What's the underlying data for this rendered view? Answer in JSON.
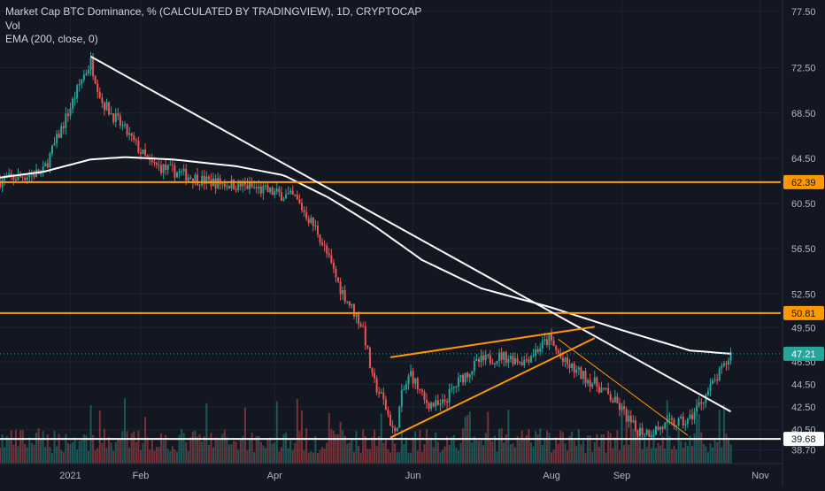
{
  "legend": {
    "title": "Market Cap BTC Dominance, % (CALCULATED BY TRADINGVIEW), 1D, CRYPTOCAP",
    "vol": "Vol",
    "ema": "EMA (200, close, 0)"
  },
  "colors": {
    "background": "#131722",
    "grid": "#1f2330",
    "up": "#26a69a",
    "down": "#ef5350",
    "level": "#ff9800",
    "line": "#ffffff",
    "text": "#b2b5be"
  },
  "chart_data": {
    "type": "candlestick",
    "title": "Market Cap BTC Dominance, % (CALCULATED BY TRADINGVIEW), 1D, CRYPTOCAP",
    "y_ticks": [
      "77.50",
      "72.50",
      "68.50",
      "64.50",
      "60.50",
      "56.50",
      "52.50",
      "49.50",
      "46.50",
      "44.50",
      "42.50",
      "40.50",
      "38.70"
    ],
    "x_ticks": [
      "2021",
      "Feb",
      "Apr",
      "Jun",
      "Aug",
      "Sep",
      "Nov"
    ],
    "ylim": [
      37.5,
      78.5
    ],
    "x_range": [
      "2020-12-01",
      "2021-11-10"
    ],
    "price_path": [
      {
        "date": "2020-12-01",
        "value": 62.5
      },
      {
        "date": "2020-12-20",
        "value": 63.3
      },
      {
        "date": "2021-01-01",
        "value": 69.0
      },
      {
        "date": "2021-01-06",
        "value": 71.5
      },
      {
        "date": "2021-01-10",
        "value": 73.0
      },
      {
        "date": "2021-01-15",
        "value": 69.5
      },
      {
        "date": "2021-01-25",
        "value": 67.0
      },
      {
        "date": "2021-02-05",
        "value": 64.0
      },
      {
        "date": "2021-03-01",
        "value": 62.5
      },
      {
        "date": "2021-03-20",
        "value": 62.0
      },
      {
        "date": "2021-04-10",
        "value": 61.0
      },
      {
        "date": "2021-04-20",
        "value": 58.0
      },
      {
        "date": "2021-04-30",
        "value": 53.0
      },
      {
        "date": "2021-05-10",
        "value": 49.5
      },
      {
        "date": "2021-05-14",
        "value": 45.0
      },
      {
        "date": "2021-05-19",
        "value": 43.0
      },
      {
        "date": "2021-05-24",
        "value": 40.0
      },
      {
        "date": "2021-05-27",
        "value": 43.5
      },
      {
        "date": "2021-05-31",
        "value": 45.5
      },
      {
        "date": "2021-06-06",
        "value": 43.0
      },
      {
        "date": "2021-06-13",
        "value": 42.5
      },
      {
        "date": "2021-06-22",
        "value": 45.0
      },
      {
        "date": "2021-06-30",
        "value": 46.5
      },
      {
        "date": "2021-07-10",
        "value": 47.0
      },
      {
        "date": "2021-07-20",
        "value": 46.6
      },
      {
        "date": "2021-07-31",
        "value": 48.5
      },
      {
        "date": "2021-08-06",
        "value": 46.5
      },
      {
        "date": "2021-08-13",
        "value": 45.5
      },
      {
        "date": "2021-08-22",
        "value": 44.3
      },
      {
        "date": "2021-08-31",
        "value": 42.5
      },
      {
        "date": "2021-09-07",
        "value": 40.5
      },
      {
        "date": "2021-09-13",
        "value": 40.3
      },
      {
        "date": "2021-09-22",
        "value": 41.0
      },
      {
        "date": "2021-09-30",
        "value": 41.2
      },
      {
        "date": "2021-10-06",
        "value": 43.0
      },
      {
        "date": "2021-10-12",
        "value": 44.8
      },
      {
        "date": "2021-10-16",
        "value": 46.0
      },
      {
        "date": "2021-10-19",
        "value": 47.21
      }
    ],
    "ema200": [
      {
        "date": "2020-12-01",
        "value": 62.8
      },
      {
        "date": "2020-12-20",
        "value": 63.3
      },
      {
        "date": "2021-01-10",
        "value": 64.4
      },
      {
        "date": "2021-01-25",
        "value": 64.6
      },
      {
        "date": "2021-02-15",
        "value": 64.4
      },
      {
        "date": "2021-03-15",
        "value": 63.8
      },
      {
        "date": "2021-04-05",
        "value": 63.0
      },
      {
        "date": "2021-04-25",
        "value": 61.0
      },
      {
        "date": "2021-05-15",
        "value": 58.5
      },
      {
        "date": "2021-06-05",
        "value": 55.5
      },
      {
        "date": "2021-07-01",
        "value": 53.0
      },
      {
        "date": "2021-08-01",
        "value": 51.3
      },
      {
        "date": "2021-09-01",
        "value": 49.3
      },
      {
        "date": "2021-10-01",
        "value": 47.5
      },
      {
        "date": "2021-10-19",
        "value": 47.21
      }
    ],
    "horizontal_levels": [
      {
        "value": 62.39,
        "label": "62.39",
        "color": "#ff9800"
      },
      {
        "value": 50.81,
        "label": "50.81",
        "color": "#ff9800"
      },
      {
        "value": 39.68,
        "label": "39.68",
        "color": "#ffffff"
      }
    ],
    "current_price": {
      "value": 47.21,
      "label": "47.21",
      "color": "#26a69a"
    },
    "trendlines": [
      {
        "name": "downtrend",
        "color": "#ffffff",
        "from": {
          "date": "2021-01-10",
          "value": 73.5
        },
        "to": {
          "date": "2021-10-19",
          "value": 42.1
        }
      },
      {
        "name": "wedge-upper",
        "color": "#ff9800",
        "from": {
          "date": "2021-05-22",
          "value": 46.9
        },
        "to": {
          "date": "2021-08-20",
          "value": 49.6
        }
      },
      {
        "name": "wedge-lower",
        "color": "#ff9800",
        "from": {
          "date": "2021-05-22",
          "value": 39.8
        },
        "to": {
          "date": "2021-08-20",
          "value": 48.6
        }
      },
      {
        "name": "thin-down",
        "color": "#ff9800",
        "from": {
          "date": "2021-08-04",
          "value": 48.5
        },
        "to": {
          "date": "2021-09-30",
          "value": 40.0
        }
      }
    ]
  }
}
